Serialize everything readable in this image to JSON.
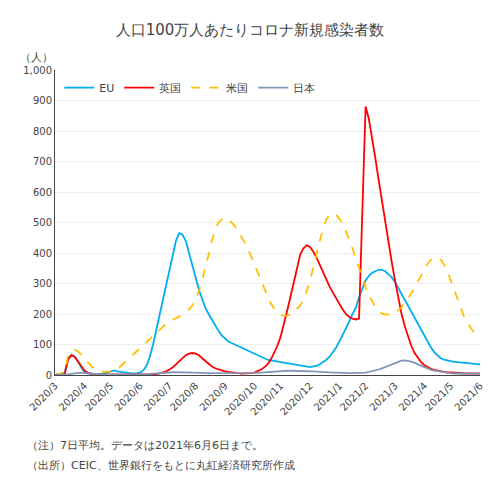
{
  "chart_data": {
    "type": "line",
    "title": "人口100万人あたりコロナ新規感染者数",
    "ylabel": "（人）",
    "annotations": [
      "（注）7日平均。データは2021年6月6日まで。",
      "（出所）CEIC、世界銀行をもとに丸紅経済研究所作成"
    ],
    "categories": [
      "2020/3",
      null,
      null,
      null,
      null,
      null,
      null,
      null,
      null,
      "2020/4",
      null,
      null,
      null,
      null,
      null,
      null,
      null,
      "2020/5",
      null,
      null,
      null,
      null,
      null,
      null,
      null,
      null,
      "2020/6",
      null,
      null,
      null,
      null,
      null,
      null,
      null,
      null,
      "2020/7",
      null,
      null,
      null,
      null,
      null,
      null,
      null,
      "2020/8",
      null,
      null,
      null,
      null,
      null,
      null,
      null,
      null,
      "2020/9",
      null,
      null,
      null,
      null,
      null,
      null,
      null,
      null,
      "2020/10",
      null,
      null,
      null,
      null,
      null,
      null,
      null,
      "2020/11",
      null,
      null,
      null,
      null,
      null,
      null,
      null,
      null,
      "2020/12",
      null,
      null,
      null,
      null,
      null,
      null,
      null,
      null,
      "2021/1",
      null,
      null,
      null,
      null,
      null,
      null,
      null,
      "2021/2",
      null,
      null,
      null,
      null,
      null,
      null,
      null,
      null,
      "2021/3",
      null,
      null,
      null,
      null,
      null,
      null,
      null,
      null,
      "2021/4",
      null,
      null,
      null,
      null,
      null,
      null,
      null,
      "2021/5",
      null,
      null,
      null,
      null,
      null,
      null,
      null,
      null,
      "2021/6"
    ],
    "series": [
      {
        "name": "EU",
        "color": "#00aeef",
        "line_style": "solid",
        "values": [
          0,
          2,
          4,
          8,
          55,
          65,
          60,
          45,
          25,
          10,
          5,
          3,
          2,
          2,
          3,
          5,
          8,
          12,
          15,
          12,
          10,
          8,
          7,
          6,
          5,
          5,
          8,
          15,
          30,
          60,
          100,
          150,
          200,
          250,
          300,
          350,
          400,
          440,
          465,
          460,
          440,
          400,
          360,
          320,
          280,
          250,
          220,
          200,
          180,
          160,
          145,
          130,
          120,
          110,
          105,
          100,
          95,
          90,
          85,
          80,
          75,
          70,
          65,
          60,
          55,
          50,
          48,
          46,
          44,
          42,
          40,
          38,
          36,
          34,
          32,
          30,
          28,
          26,
          26,
          28,
          30,
          35,
          42,
          50,
          60,
          75,
          90,
          110,
          130,
          155,
          175,
          200,
          220,
          255,
          285,
          310,
          325,
          335,
          340,
          345,
          345,
          340,
          330,
          320,
          305,
          285,
          265,
          245,
          225,
          205,
          185,
          165,
          145,
          125,
          105,
          90,
          75,
          65,
          55,
          50,
          47,
          45,
          43,
          42,
          41,
          40,
          39,
          38,
          37,
          36,
          35
        ]
      },
      {
        "name": "英国",
        "color": "#ff0000",
        "line_style": "solid",
        "values": [
          0,
          2,
          3,
          5,
          50,
          65,
          60,
          45,
          28,
          15,
          8,
          4,
          2,
          1,
          1,
          1,
          1,
          1,
          1,
          1,
          1,
          1,
          1,
          1,
          1,
          1,
          1,
          1,
          1,
          1,
          2,
          3,
          5,
          8,
          12,
          18,
          25,
          35,
          45,
          55,
          65,
          70,
          72,
          70,
          65,
          55,
          45,
          35,
          28,
          22,
          18,
          15,
          12,
          10,
          8,
          7,
          6,
          5,
          5,
          5,
          6,
          8,
          12,
          18,
          25,
          35,
          50,
          70,
          95,
          125,
          165,
          210,
          255,
          305,
          355,
          395,
          415,
          425,
          420,
          405,
          385,
          360,
          335,
          310,
          290,
          270,
          250,
          230,
          215,
          200,
          190,
          185,
          182,
          185,
          500,
          880,
          840,
          780,
          710,
          640,
          570,
          500,
          435,
          370,
          310,
          250,
          200,
          160,
          125,
          95,
          72,
          55,
          42,
          32,
          25,
          20,
          17,
          14,
          12,
          10,
          9,
          8,
          7,
          6,
          5,
          5,
          5,
          5,
          5,
          5,
          5
        ]
      },
      {
        "name": "米国",
        "color": "#ffc000",
        "line_style": "dashed",
        "values": [
          0,
          2,
          5,
          10,
          65,
          80,
          82,
          78,
          68,
          55,
          42,
          30,
          22,
          16,
          12,
          10,
          10,
          12,
          15,
          20,
          28,
          38,
          50,
          60,
          70,
          80,
          90,
          100,
          110,
          120,
          130,
          140,
          150,
          160,
          168,
          175,
          180,
          185,
          192,
          198,
          205,
          215,
          228,
          248,
          275,
          310,
          350,
          395,
          440,
          475,
          500,
          510,
          515,
          510,
          500,
          488,
          472,
          455,
          435,
          415,
          390,
          365,
          340,
          312,
          285,
          258,
          235,
          218,
          205,
          198,
          195,
          195,
          198,
          205,
          215,
          228,
          248,
          275,
          310,
          350,
          395,
          440,
          480,
          510,
          525,
          530,
          525,
          512,
          495,
          472,
          445,
          415,
          382,
          350,
          318,
          288,
          262,
          240,
          222,
          210,
          202,
          198,
          198,
          200,
          205,
          212,
          222,
          235,
          250,
          268,
          288,
          308,
          328,
          348,
          365,
          378,
          385,
          385,
          378,
          362,
          340,
          312,
          282,
          252,
          222,
          195,
          172,
          155,
          142,
          132,
          126
        ]
      },
      {
        "name": "日本",
        "color": "#8496b8",
        "line_style": "solid",
        "values": [
          0,
          0,
          0,
          1,
          2,
          4,
          6,
          7,
          7,
          7,
          6,
          5,
          4,
          3,
          2,
          2,
          1,
          1,
          1,
          1,
          1,
          1,
          1,
          1,
          1,
          1,
          2,
          2,
          3,
          4,
          5,
          6,
          7,
          8,
          8,
          9,
          9,
          9,
          9,
          9,
          8,
          8,
          8,
          8,
          7,
          7,
          6,
          6,
          5,
          5,
          5,
          5,
          5,
          5,
          5,
          5,
          5,
          5,
          5,
          5,
          5,
          6,
          7,
          8,
          9,
          10,
          11,
          12,
          13,
          13,
          14,
          14,
          14,
          14,
          14,
          14,
          14,
          13,
          12,
          12,
          11,
          10,
          9,
          9,
          8,
          8,
          8,
          7,
          7,
          6,
          6,
          6,
          6,
          6,
          7,
          8,
          10,
          12,
          15,
          18,
          22,
          26,
          30,
          35,
          39,
          44,
          47,
          48,
          47,
          44,
          40,
          35,
          30,
          25,
          20,
          17,
          14,
          12,
          10,
          8,
          7,
          6,
          5,
          5,
          5,
          5,
          5,
          5,
          5,
          5,
          5
        ]
      }
    ],
    "ylim": [
      0,
      1000
    ],
    "yticks": [
      0,
      100,
      200,
      300,
      400,
      500,
      600,
      700,
      800,
      900,
      {
        "value": 1000,
        "label": "1,000"
      }
    ],
    "grid": true,
    "legend": "upper left"
  }
}
